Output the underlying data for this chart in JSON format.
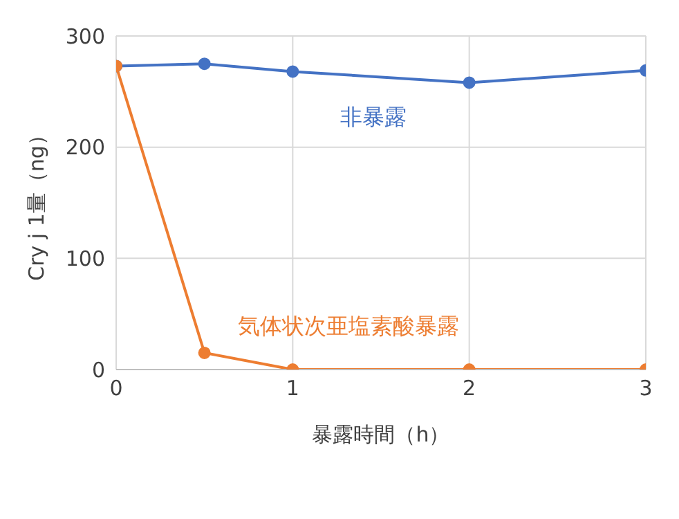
{
  "chart_data": {
    "type": "line",
    "xlabel": "暴露時間（h）",
    "ylabel": "Cry j 1量（ng）",
    "x": [
      0,
      0.5,
      1,
      2,
      3
    ],
    "series": [
      {
        "name": "非暴露",
        "color": "#4472c4",
        "values": [
          273,
          275,
          268,
          258,
          269
        ]
      },
      {
        "name": "気体状次亜塩素酸暴露",
        "color": "#ed7d31",
        "values": [
          273,
          15,
          0,
          0,
          0
        ]
      }
    ],
    "xlim": [
      0,
      3
    ],
    "xticks": [
      0,
      1,
      2,
      3
    ],
    "ylim": [
      0,
      300
    ],
    "yticks": [
      0,
      100,
      200,
      300
    ],
    "grid": true,
    "marker": "circle",
    "line_style": "solid"
  }
}
